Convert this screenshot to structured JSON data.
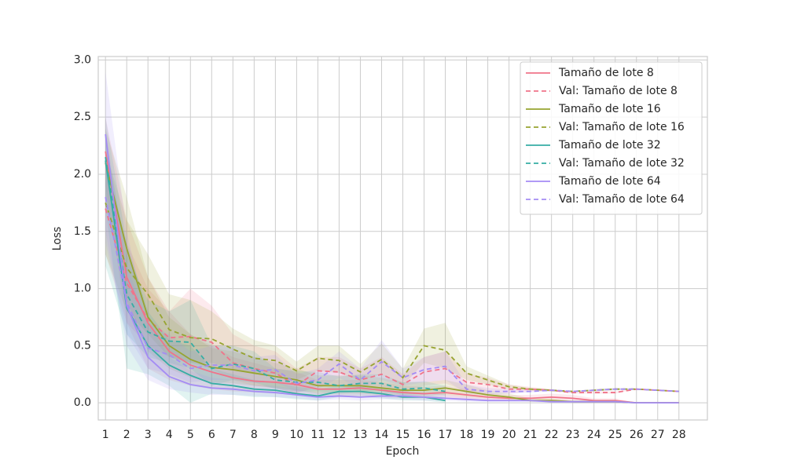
{
  "chart_data": {
    "type": "line",
    "xlabel": "Epoch",
    "ylabel": "Loss",
    "x": [
      1,
      2,
      3,
      4,
      5,
      6,
      7,
      8,
      9,
      10,
      11,
      12,
      13,
      14,
      15,
      16,
      17,
      18,
      19,
      20,
      21,
      22,
      23,
      24,
      25,
      26,
      27,
      28
    ],
    "xlim": [
      0.66,
      29.34
    ],
    "xticks": [
      1,
      2,
      3,
      4,
      5,
      6,
      7,
      8,
      9,
      10,
      11,
      12,
      13,
      14,
      15,
      16,
      17,
      18,
      19,
      20,
      21,
      22,
      23,
      24,
      25,
      26,
      27,
      28
    ],
    "ylim": [
      -0.15,
      3.03
    ],
    "yticks": [
      {
        "value": 0,
        "label": "0.0"
      },
      0.5,
      {
        "value": 1,
        "label": "1.0"
      },
      1.5,
      {
        "value": 2,
        "label": "2.0"
      },
      2.5,
      {
        "value": 3,
        "label": "3.0"
      }
    ],
    "grid": true,
    "legend": "upper right",
    "series": [
      {
        "name": "Tamaño de lote 8",
        "color": "#f0748a",
        "dash": false,
        "values": [
          2.2,
          1.1,
          0.7,
          0.45,
          0.33,
          0.27,
          0.22,
          0.19,
          0.18,
          0.16,
          0.12,
          0.12,
          0.13,
          0.11,
          0.09,
          0.08,
          0.09,
          0.07,
          0.05,
          0.04,
          0.04,
          0.05,
          0.04,
          0.02,
          0.02,
          0,
          0,
          0
        ],
        "lower": [
          1.9,
          0.7,
          0.3,
          0.2,
          0.15,
          0.12,
          0.1,
          0.09,
          0.08,
          0.07,
          0.05,
          0.05,
          0.06,
          0.05,
          0.04,
          0.04,
          0.04,
          0.03,
          0.02,
          0.02,
          0.02,
          0.02,
          0.02,
          0.01,
          0.01,
          0,
          0,
          0
        ],
        "upper": [
          2.5,
          1.6,
          1.1,
          0.8,
          0.6,
          0.5,
          0.4,
          0.35,
          0.3,
          0.27,
          0.2,
          0.2,
          0.2,
          0.18,
          0.15,
          0.14,
          0.15,
          0.12,
          0.09,
          0.07,
          0.07,
          0.08,
          0.07,
          0.04,
          0.04,
          0,
          0,
          0
        ]
      },
      {
        "name": "Val: Tamaño de lote 8",
        "color": "#f0748a",
        "dash": true,
        "values": [
          1.7,
          1.05,
          0.73,
          0.57,
          0.58,
          0.53,
          0.35,
          0.3,
          0.26,
          0.15,
          0.28,
          0.27,
          0.2,
          0.25,
          0.16,
          0.27,
          0.3,
          0.18,
          0.16,
          0.12,
          0.12,
          0.11,
          0.09,
          0.09,
          0.09,
          0.12,
          0.11,
          0.1
        ],
        "lower": [
          1.3,
          0.7,
          0.5,
          0.4,
          0.35,
          0.3,
          0.2,
          0.15,
          0.13,
          0.08,
          0.15,
          0.15,
          0.1,
          0.12,
          0.08,
          0.15,
          0.17,
          0.1,
          0.1,
          0.08,
          0.1,
          0.1,
          0.08,
          0.08,
          0.08,
          0.12,
          0.11,
          0.1
        ],
        "upper": [
          2.1,
          1.4,
          1.0,
          0.8,
          1.0,
          0.85,
          0.6,
          0.5,
          0.45,
          0.3,
          0.4,
          0.4,
          0.3,
          0.4,
          0.25,
          0.4,
          0.45,
          0.26,
          0.22,
          0.16,
          0.14,
          0.12,
          0.1,
          0.1,
          0.1,
          0.12,
          0.11,
          0.1
        ]
      },
      {
        "name": "Tamaño de lote 16",
        "color": "#97a431",
        "dash": false,
        "values": [
          2.1,
          1.35,
          0.75,
          0.5,
          0.38,
          0.31,
          0.29,
          0.26,
          0.23,
          0.2,
          0.15,
          0.15,
          0.15,
          0.13,
          0.11,
          0.11,
          0.13,
          0.1,
          0.07,
          0.05,
          0.02,
          0.02,
          0.01,
          0.01,
          0.01,
          0,
          0,
          0
        ],
        "lower": [
          1.8,
          0.9,
          0.45,
          0.3,
          0.22,
          0.18,
          0.17,
          0.15,
          0.13,
          0.11,
          0.08,
          0.08,
          0.08,
          0.07,
          0.06,
          0.06,
          0.07,
          0.05,
          0.04,
          0.03,
          0.01,
          0.01,
          0,
          0,
          0,
          0,
          0,
          0
        ],
        "upper": [
          2.4,
          1.8,
          1.1,
          0.75,
          0.6,
          0.48,
          0.45,
          0.4,
          0.35,
          0.3,
          0.24,
          0.24,
          0.24,
          0.22,
          0.18,
          0.18,
          0.2,
          0.16,
          0.11,
          0.08,
          0.04,
          0.04,
          0.02,
          0.02,
          0.02,
          0,
          0,
          0
        ]
      },
      {
        "name": "Val: Tamaño de lote 16",
        "color": "#97a431",
        "dash": true,
        "values": [
          1.75,
          1.18,
          0.95,
          0.64,
          0.57,
          0.56,
          0.47,
          0.39,
          0.37,
          0.28,
          0.39,
          0.37,
          0.27,
          0.38,
          0.22,
          0.5,
          0.46,
          0.26,
          0.2,
          0.14,
          0.12,
          0.11,
          0.1,
          0.11,
          0.12,
          0.12,
          0.11,
          0.1
        ],
        "lower": [
          1.3,
          0.8,
          0.6,
          0.4,
          0.35,
          0.35,
          0.3,
          0.25,
          0.25,
          0.2,
          0.28,
          0.26,
          0.2,
          0.25,
          0.15,
          0.35,
          0.3,
          0.2,
          0.16,
          0.12,
          0.11,
          0.1,
          0.1,
          0.1,
          0.11,
          0.12,
          0.11,
          0.1
        ],
        "upper": [
          2.2,
          1.6,
          1.3,
          0.95,
          0.9,
          0.8,
          0.65,
          0.55,
          0.5,
          0.36,
          0.5,
          0.5,
          0.34,
          0.52,
          0.3,
          0.65,
          0.7,
          0.32,
          0.24,
          0.16,
          0.13,
          0.12,
          0.1,
          0.12,
          0.13,
          0.12,
          0.11,
          0.1
        ]
      },
      {
        "name": "Tamaño de lote 32",
        "color": "#36ada4",
        "dash": false,
        "values": [
          2.12,
          0.83,
          0.5,
          0.33,
          0.24,
          0.17,
          0.15,
          0.12,
          0.11,
          0.08,
          0.06,
          0.1,
          0.1,
          0.08,
          0.05,
          0.05,
          0.02,
          null,
          null,
          null,
          null,
          null,
          null,
          null,
          null,
          null,
          null,
          null
        ],
        "lower": [
          1.7,
          0.3,
          0.25,
          0.15,
          0,
          0.08,
          0.07,
          0.05,
          0.05,
          0.03,
          0.02,
          0.05,
          0.05,
          0.04,
          0.02,
          0.02,
          0,
          null,
          null,
          null,
          null,
          null,
          null,
          null,
          null,
          null,
          null,
          null
        ],
        "upper": [
          2.5,
          1.4,
          0.8,
          0.55,
          0.5,
          0.3,
          0.25,
          0.2,
          0.18,
          0.14,
          0.12,
          0.15,
          0.15,
          0.13,
          0.08,
          0.08,
          0.05,
          null,
          null,
          null,
          null,
          null,
          null,
          null,
          null,
          null,
          null,
          null
        ]
      },
      {
        "name": "Val: Tamaño de lote 32",
        "color": "#36ada4",
        "dash": true,
        "values": [
          2.15,
          0.95,
          0.62,
          0.54,
          0.53,
          0.3,
          0.34,
          0.3,
          0.2,
          0.18,
          0.18,
          0.15,
          0.17,
          0.17,
          0.12,
          0.13,
          0.1,
          null,
          null,
          null,
          null,
          null,
          null,
          null,
          null,
          null,
          null,
          null
        ],
        "lower": [
          1.2,
          0.6,
          0.4,
          0.35,
          0.3,
          0.15,
          0.2,
          0.18,
          0.12,
          0.1,
          0.1,
          0.08,
          0.1,
          0.1,
          0.07,
          0.08,
          0.06,
          null,
          null,
          null,
          null,
          null,
          null,
          null,
          null,
          null,
          null,
          null
        ],
        "upper": [
          2.3,
          1.3,
          0.9,
          0.8,
          0.9,
          0.5,
          0.5,
          0.45,
          0.3,
          0.28,
          0.27,
          0.23,
          0.25,
          0.25,
          0.18,
          0.19,
          0.15,
          null,
          null,
          null,
          null,
          null,
          null,
          null,
          null,
          null,
          null,
          null
        ]
      },
      {
        "name": "Tamaño de lote 64",
        "color": "#a48cf4",
        "dash": false,
        "values": [
          2.35,
          0.85,
          0.4,
          0.23,
          0.16,
          0.13,
          0.12,
          0.1,
          0.09,
          0.07,
          0.05,
          0.06,
          0.05,
          0.06,
          0.06,
          0.05,
          0.04,
          0.03,
          0.02,
          0.02,
          0.02,
          0.01,
          0.01,
          0.01,
          0.01,
          0,
          0,
          0
        ],
        "lower": [
          1.5,
          0.5,
          0.2,
          0.12,
          0.09,
          0.07,
          0.07,
          0.06,
          0.05,
          0.04,
          0.02,
          0.03,
          0.02,
          0.03,
          0.03,
          0.02,
          0.02,
          0.01,
          0.01,
          0.01,
          0.01,
          0,
          0,
          0,
          0,
          0,
          0,
          0
        ],
        "upper": [
          2.9,
          1.5,
          0.7,
          0.4,
          0.28,
          0.22,
          0.2,
          0.16,
          0.15,
          0.12,
          0.09,
          0.1,
          0.09,
          0.1,
          0.1,
          0.09,
          0.07,
          0.05,
          0.04,
          0.03,
          0.03,
          0.02,
          0.02,
          0.02,
          0.02,
          0,
          0,
          0
        ]
      },
      {
        "name": "Val: Tamaño de lote 64",
        "color": "#a48cf4",
        "dash": true,
        "values": [
          1.8,
          0.88,
          0.48,
          0.42,
          0.3,
          0.33,
          0.33,
          0.28,
          0.29,
          0.17,
          0.2,
          0.34,
          0.2,
          0.36,
          0.22,
          0.29,
          0.32,
          0.12,
          0.1,
          0.1,
          0.1,
          0.11,
          0.1,
          0.11,
          0.12,
          0.12,
          0.11,
          0.1
        ],
        "lower": [
          1.4,
          0.6,
          0.3,
          0.25,
          0.18,
          0.2,
          0.2,
          0.17,
          0.18,
          0.1,
          0.12,
          0.22,
          0.12,
          0.2,
          0.15,
          0.18,
          0.2,
          0.08,
          0.07,
          0.08,
          0.09,
          0.1,
          0.1,
          0.1,
          0.11,
          0.12,
          0.11,
          0.1
        ],
        "upper": [
          2.4,
          1.2,
          0.7,
          0.6,
          0.45,
          0.5,
          0.48,
          0.4,
          0.42,
          0.25,
          0.3,
          0.45,
          0.3,
          0.55,
          0.3,
          0.4,
          0.45,
          0.16,
          0.13,
          0.12,
          0.11,
          0.12,
          0.1,
          0.12,
          0.13,
          0.12,
          0.11,
          0.1
        ]
      }
    ]
  }
}
